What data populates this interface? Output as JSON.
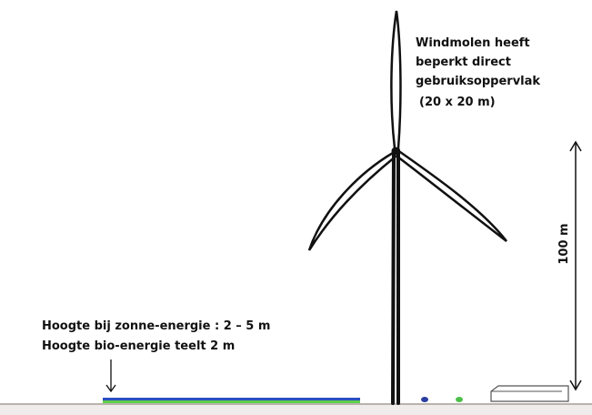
{
  "windmill_note": [
    "Windmolen heeft",
    "beperkt direct",
    "gebruiksoppervlak",
    "(20 x 20 m)"
  ],
  "height_label": "100 m",
  "solar_height": "Hoogte bij zonne-energie :  2 – 5 m",
  "bio_height": "Hoogte  bio-energie teelt  2 m"
}
